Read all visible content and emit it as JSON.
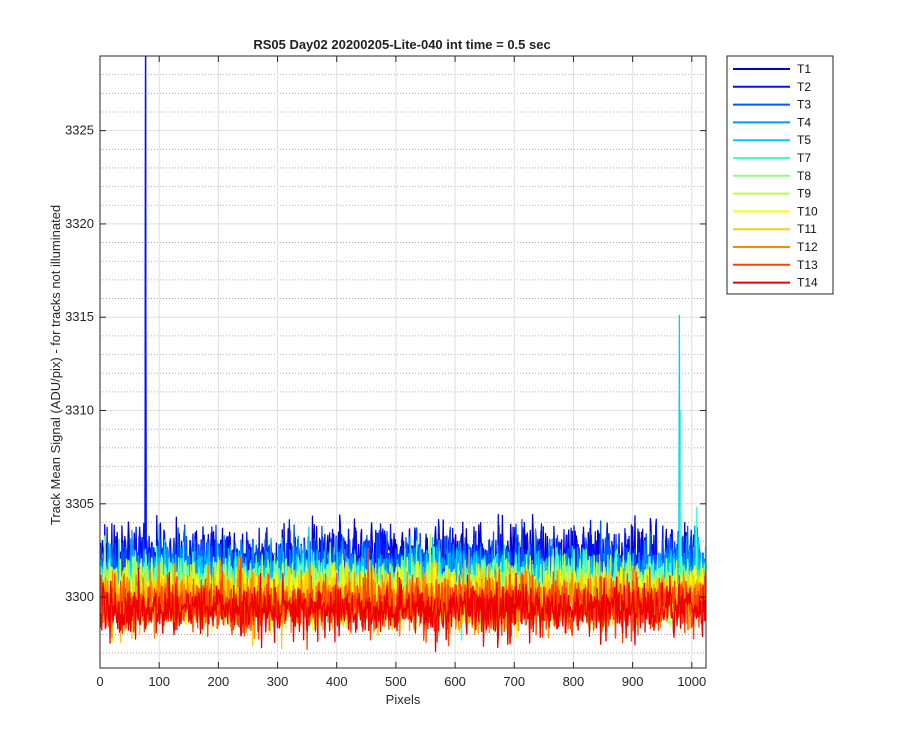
{
  "chart_data": {
    "type": "line",
    "title": "RS05 Day02 20200205-Lite-040 int time = 0.5 sec",
    "xlabel": "Pixels",
    "ylabel": "Track Mean Signal (ADU/pix) - for tracks not illuminated",
    "xlim": [
      0,
      1024
    ],
    "ylim": [
      3296.2,
      3329
    ],
    "x_ticks": [
      0,
      100,
      200,
      300,
      400,
      500,
      600,
      700,
      800,
      900,
      1000
    ],
    "y_ticks": [
      3300,
      3305,
      3310,
      3315,
      3320,
      3325
    ],
    "grid": true,
    "minor_grid_y": true,
    "legend_position": "outside-top-right",
    "x_points": 1024,
    "series": [
      {
        "name": "T1",
        "color": "#0000cc",
        "baseline": 3302.0,
        "noise": 1.6,
        "spikes": [
          {
            "x": 77,
            "y": 3329
          }
        ]
      },
      {
        "name": "T2",
        "color": "#0011ff",
        "baseline": 3301.8,
        "noise": 1.5,
        "spikes": [
          {
            "x": 77,
            "y": 3329
          }
        ]
      },
      {
        "name": "T3",
        "color": "#0055ff",
        "baseline": 3301.6,
        "noise": 1.4,
        "spikes": []
      },
      {
        "name": "T4",
        "color": "#0099ff",
        "baseline": 3301.3,
        "noise": 1.4,
        "spikes": []
      },
      {
        "name": "T5",
        "color": "#00ccff",
        "baseline": 3301.0,
        "noise": 1.3,
        "spikes": [
          {
            "x": 979,
            "y": 3315.1
          }
        ]
      },
      {
        "name": "T7",
        "color": "#44ffcc",
        "baseline": 3300.7,
        "noise": 1.3,
        "spikes": [
          {
            "x": 981,
            "y": 3310.0
          },
          {
            "x": 1008,
            "y": 3304.8
          }
        ]
      },
      {
        "name": "T8",
        "color": "#88ff88",
        "baseline": 3300.5,
        "noise": 1.3,
        "spikes": []
      },
      {
        "name": "T9",
        "color": "#bbff44",
        "baseline": 3300.3,
        "noise": 1.3,
        "spikes": []
      },
      {
        "name": "T10",
        "color": "#ffff00",
        "baseline": 3300.1,
        "noise": 1.3,
        "spikes": []
      },
      {
        "name": "T11",
        "color": "#ffcc00",
        "baseline": 3300.0,
        "noise": 1.3,
        "spikes": []
      },
      {
        "name": "T12",
        "color": "#ff8800",
        "baseline": 3299.8,
        "noise": 1.3,
        "spikes": []
      },
      {
        "name": "T13",
        "color": "#ff4400",
        "baseline": 3299.6,
        "noise": 1.3,
        "spikes": []
      },
      {
        "name": "T14",
        "color": "#ee0000",
        "baseline": 3299.4,
        "noise": 1.2,
        "spikes": []
      }
    ]
  }
}
